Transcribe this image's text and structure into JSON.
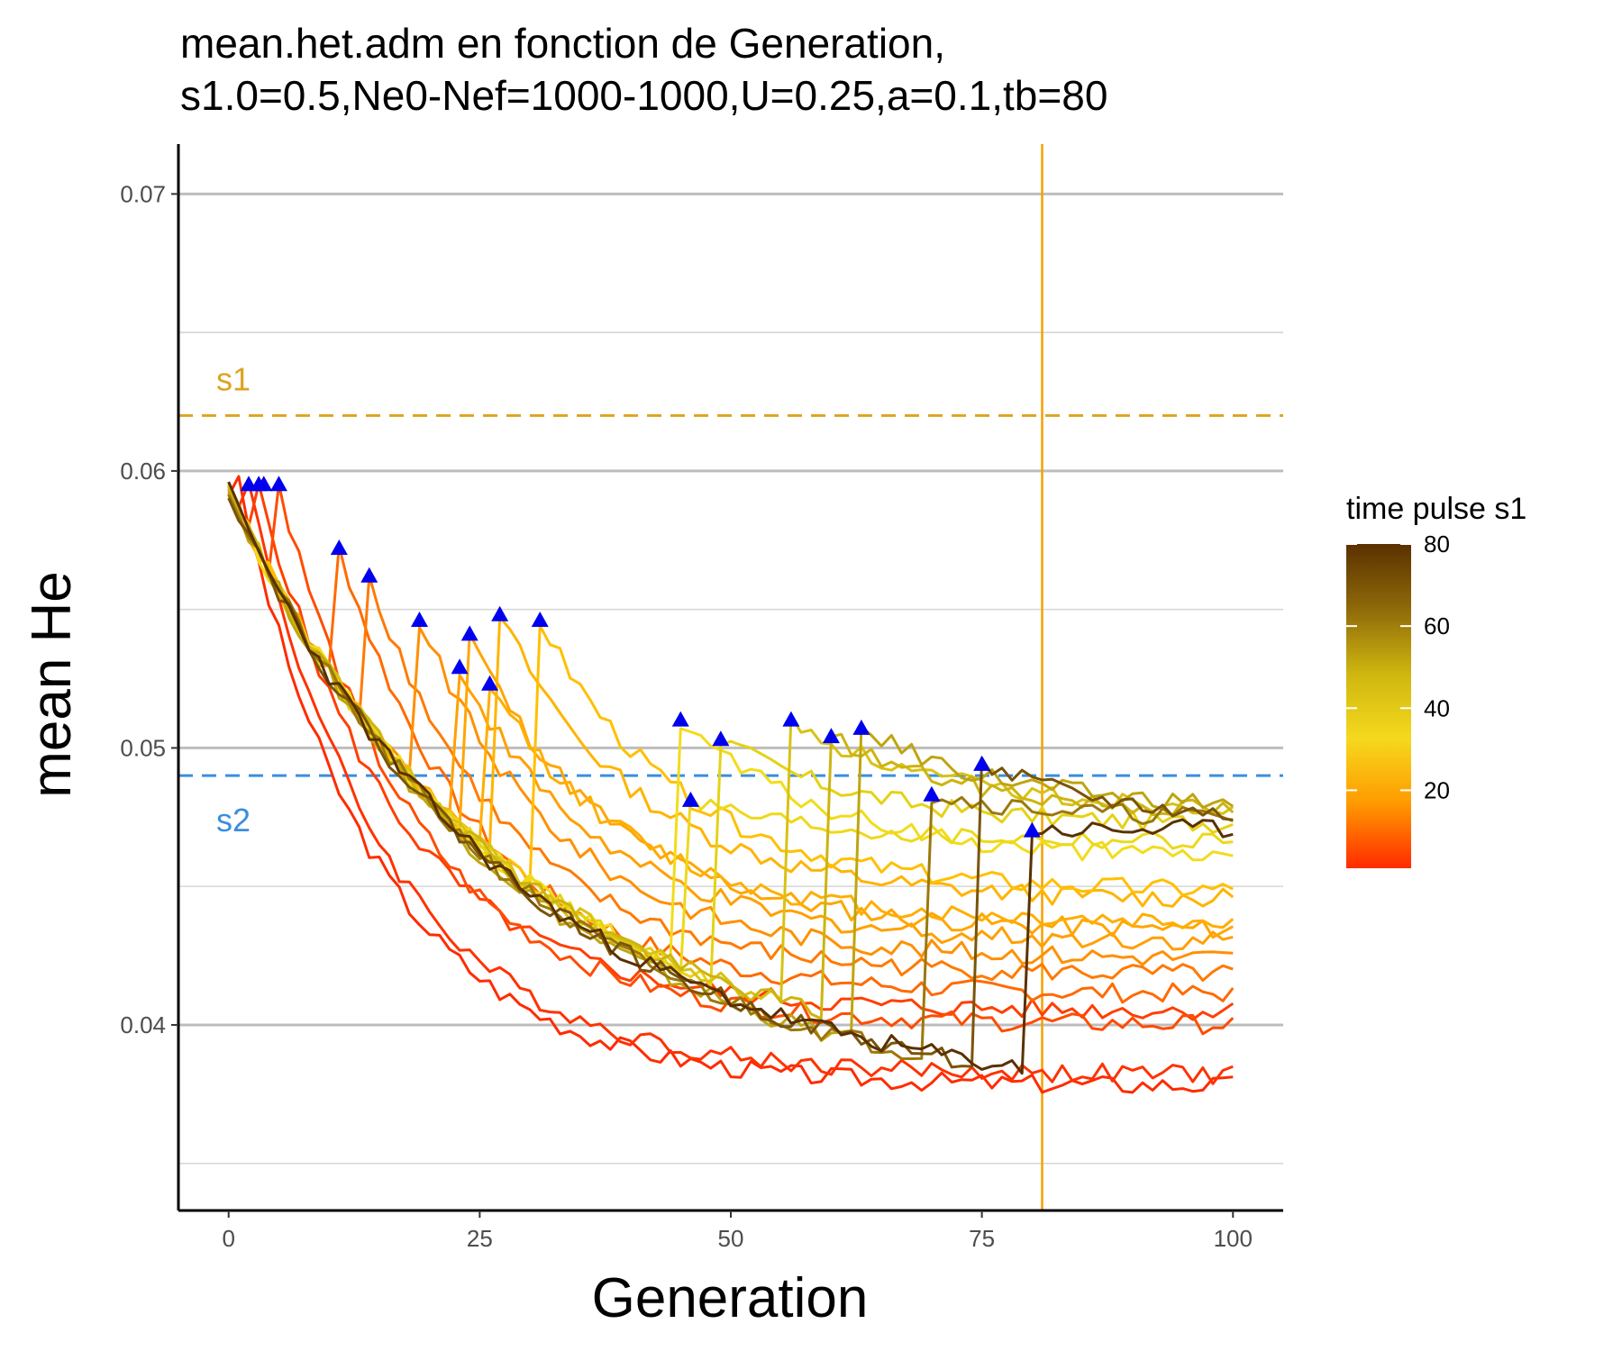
{
  "chart_data": {
    "type": "line",
    "title": "mean.het.adm en fonction de Generation,",
    "subtitle": "s1.0=0.5,Ne0-Nef=1000-1000,U=0.25,a=0.1,tb=80",
    "xlabel": "Generation",
    "ylabel": "mean He",
    "xlim": [
      -5,
      105
    ],
    "ylim": [
      0.0333,
      0.0718
    ],
    "x_ticks": [
      0,
      25,
      50,
      75,
      100
    ],
    "x_tick_labels": [
      "0",
      "25",
      "50",
      "75",
      "100"
    ],
    "y_ticks": [
      0.04,
      0.05,
      0.06,
      0.07
    ],
    "y_tick_labels": [
      "0.04",
      "0.05",
      "0.06",
      "0.07"
    ],
    "grid": true,
    "reference_lines": [
      {
        "label": "s1",
        "orientation": "horizontal",
        "value": 0.062,
        "style": "dashed",
        "color": "#DAA520"
      },
      {
        "label": "s2",
        "orientation": "horizontal",
        "value": 0.049,
        "style": "dashed",
        "color": "#3A8EE0"
      },
      {
        "label": "",
        "orientation": "vertical",
        "value": 81,
        "style": "solid",
        "color": "#F5A000"
      }
    ],
    "colorbar": {
      "title": "time pulse s1",
      "range": [
        1,
        80
      ],
      "ticks": [
        20,
        40,
        60,
        80
      ],
      "tick_labels": [
        "20",
        "40",
        "60",
        "80"
      ],
      "gradient": [
        "#FF2A00",
        "#FF9A00",
        "#F5D91E",
        "#CFB60F",
        "#8F6A0A",
        "#5A3000"
      ]
    },
    "series": [
      {
        "pulse": 1,
        "color": "#FF2B00",
        "final": 0.0378
      },
      {
        "pulse": 2,
        "color": "#FF3200",
        "final": 0.0382
      },
      {
        "pulse": 3,
        "color": "#FF3F00",
        "final": 0.0405
      },
      {
        "pulse": 5,
        "color": "#FF4C00",
        "final": 0.04
      },
      {
        "pulse": 11,
        "color": "#FF6A00",
        "final": 0.0411
      },
      {
        "pulse": 14,
        "color": "#FF7A00",
        "final": 0.0418
      },
      {
        "pulse": 19,
        "color": "#FF9000",
        "final": 0.0424
      },
      {
        "pulse": 23,
        "color": "#FFA000",
        "final": 0.043
      },
      {
        "pulse": 24,
        "color": "#FFA600",
        "final": 0.0434
      },
      {
        "pulse": 26,
        "color": "#FFAE00",
        "final": 0.0437
      },
      {
        "pulse": 27,
        "color": "#FFB400",
        "final": 0.0445
      },
      {
        "pulse": 31,
        "color": "#FFC000",
        "final": 0.0448
      },
      {
        "pulse": 45,
        "color": "#F2DC1A",
        "final": 0.046
      },
      {
        "pulse": 46,
        "color": "#EDD91A",
        "final": 0.0466
      },
      {
        "pulse": 49,
        "color": "#E5D215",
        "final": 0.0472
      },
      {
        "pulse": 56,
        "color": "#D8C213",
        "final": 0.0478
      },
      {
        "pulse": 60,
        "color": "#CDB40F",
        "final": 0.0476
      },
      {
        "pulse": 63,
        "color": "#BFA50E",
        "final": 0.0478
      },
      {
        "pulse": 70,
        "color": "#9C780B",
        "final": 0.0474
      },
      {
        "pulse": 75,
        "color": "#7A5408",
        "final": 0.0472
      },
      {
        "pulse": 80,
        "color": "#5A3000",
        "final": 0.0471
      }
    ],
    "pulse_markers": [
      {
        "x": 2,
        "y": 0.0595
      },
      {
        "x": 3,
        "y": 0.0595
      },
      {
        "x": 3.5,
        "y": 0.0595
      },
      {
        "x": 5,
        "y": 0.0595
      },
      {
        "x": 11,
        "y": 0.0572
      },
      {
        "x": 14,
        "y": 0.0562
      },
      {
        "x": 19,
        "y": 0.0546
      },
      {
        "x": 23,
        "y": 0.0529
      },
      {
        "x": 24,
        "y": 0.0541
      },
      {
        "x": 26,
        "y": 0.0523
      },
      {
        "x": 27,
        "y": 0.0548
      },
      {
        "x": 31,
        "y": 0.0546
      },
      {
        "x": 45,
        "y": 0.051
      },
      {
        "x": 46,
        "y": 0.0481
      },
      {
        "x": 49,
        "y": 0.0503
      },
      {
        "x": 56,
        "y": 0.051
      },
      {
        "x": 60,
        "y": 0.0504
      },
      {
        "x": 63,
        "y": 0.0507
      },
      {
        "x": 70,
        "y": 0.0483
      },
      {
        "x": 75,
        "y": 0.0494
      },
      {
        "x": 80,
        "y": 0.047
      }
    ],
    "marker_color": "#0000EE"
  }
}
